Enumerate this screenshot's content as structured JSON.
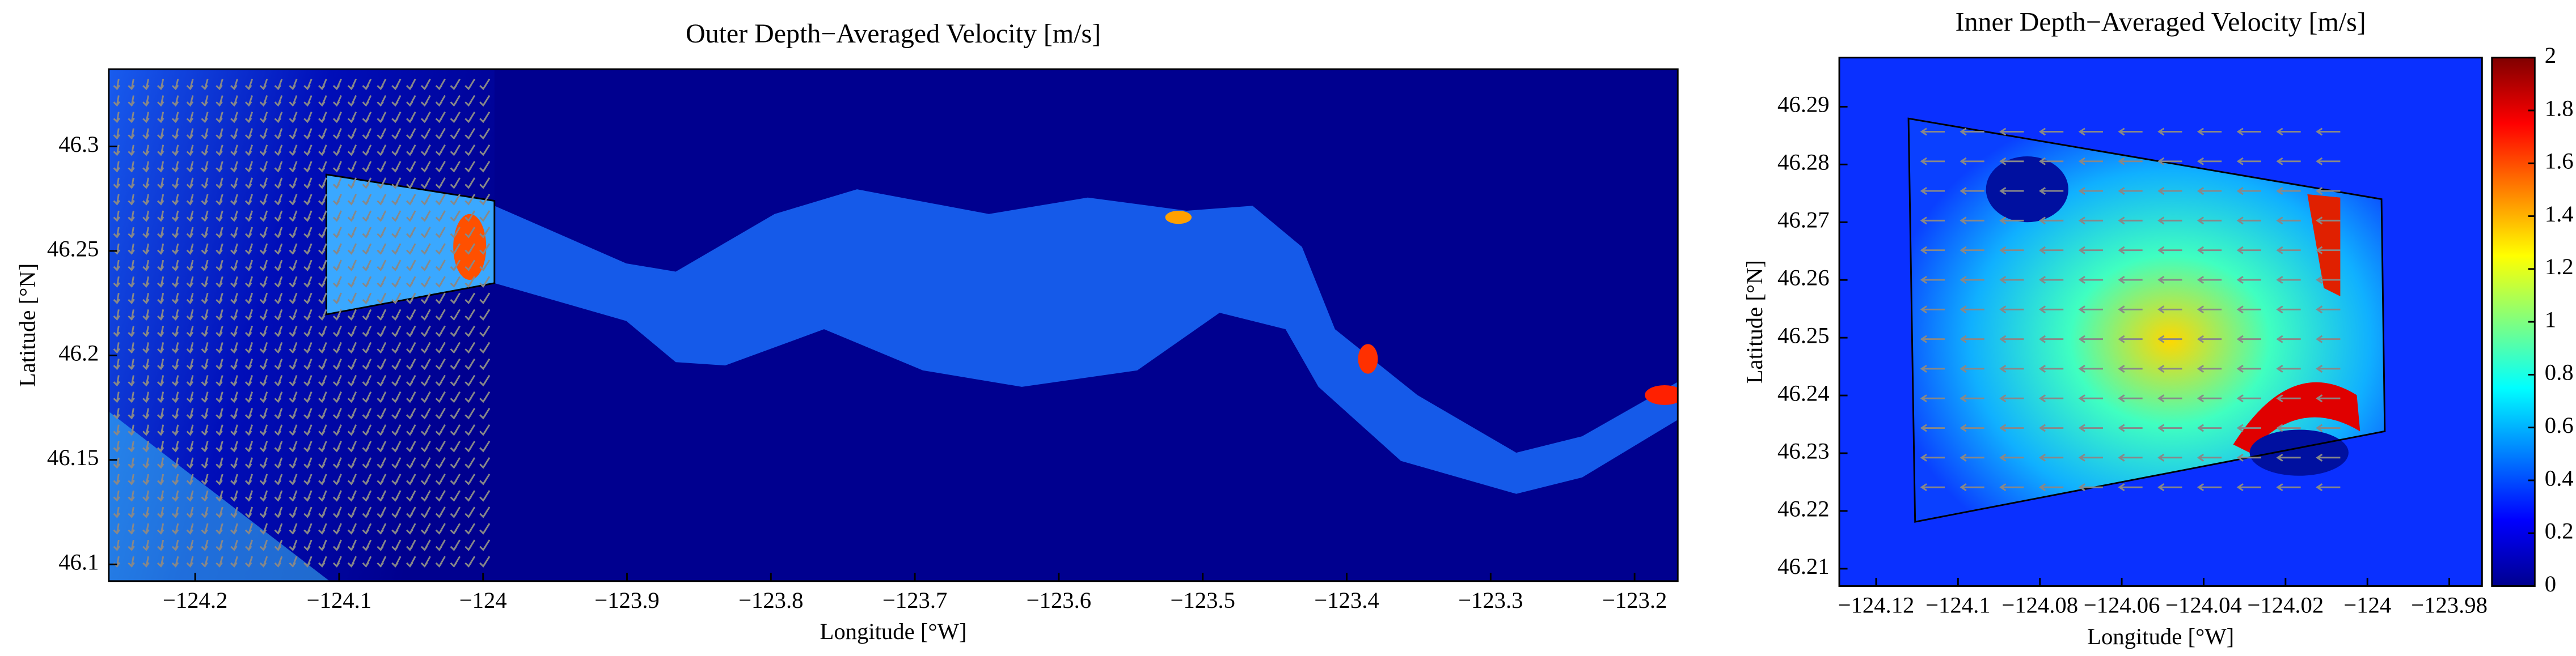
{
  "chart_data": [
    {
      "type": "heatmap",
      "title": "Outer Depth−Averaged Velocity [m/s]",
      "x_label": "Longitude [°W]",
      "y_label": "Latitude [°N]",
      "xlim": [
        -124.26,
        -123.17
      ],
      "ylim": [
        46.092,
        46.337
      ],
      "xticks": [
        {
          "value": -124.2,
          "label": "−124.2"
        },
        {
          "value": -124.1,
          "label": "−124.1"
        },
        {
          "value": -124,
          "label": "−124"
        },
        {
          "value": -123.9,
          "label": "−123.9"
        },
        {
          "value": -123.8,
          "label": "−123.8"
        },
        {
          "value": -123.7,
          "label": "−123.7"
        },
        {
          "value": -123.6,
          "label": "−123.6"
        },
        {
          "value": -123.5,
          "label": "−123.5"
        },
        {
          "value": -123.4,
          "label": "−123.4"
        },
        {
          "value": -123.3,
          "label": "−123.3"
        },
        {
          "value": -123.2,
          "label": "−123.2"
        }
      ],
      "yticks": [
        46.1,
        46.15,
        46.2,
        46.25,
        46.3
      ]
    },
    {
      "type": "heatmap",
      "title": "Inner Depth−Averaged Velocity [m/s]",
      "x_label": "Longitude [°W]",
      "y_label": "Latitude [°N]",
      "xlim": [
        -124.129,
        -123.972
      ],
      "ylim": [
        46.207,
        46.2985
      ],
      "xticks": [
        {
          "value": -124.12,
          "label": "−124.12"
        },
        {
          "value": -124.1,
          "label": "−124.1"
        },
        {
          "value": -124.08,
          "label": "−124.08"
        },
        {
          "value": -124.06,
          "label": "−124.06"
        },
        {
          "value": -124.04,
          "label": "−124.04"
        },
        {
          "value": -124.02,
          "label": "−124.02"
        },
        {
          "value": -124,
          "label": "−124"
        },
        {
          "value": -123.98,
          "label": "−123.98"
        }
      ],
      "yticks": [
        46.21,
        46.22,
        46.23,
        46.24,
        46.25,
        46.26,
        46.27,
        46.28,
        46.29
      ],
      "colormap": "jet",
      "clim": [
        0,
        2
      ],
      "cticks": [
        0,
        0.2,
        0.4,
        0.6,
        0.8,
        1,
        1.2,
        1.4,
        1.6,
        1.8,
        2
      ]
    }
  ]
}
